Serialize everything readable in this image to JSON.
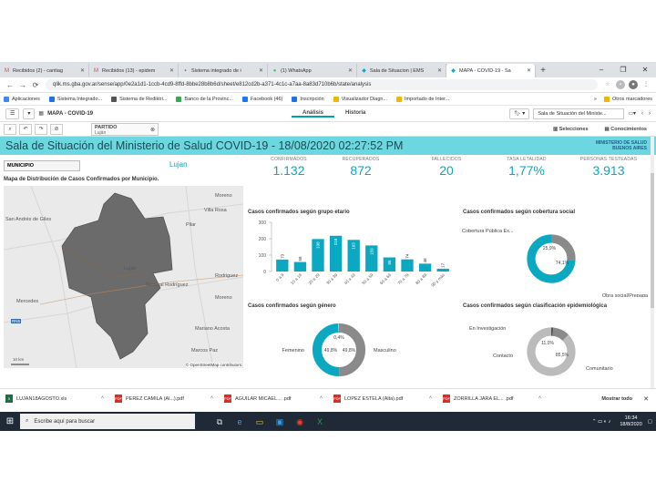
{
  "browser": {
    "tabs": [
      {
        "title": "Recibidos (2) - cantiag",
        "favicon_color": "#ea4335",
        "favicon": "M"
      },
      {
        "title": "Recibidos (13) - epidem",
        "favicon_color": "#ea4335",
        "favicon": "M"
      },
      {
        "title": "Sistema integrado de i",
        "favicon_color": "#1a73e8",
        "favicon": "▪"
      },
      {
        "title": "(1) WhatsApp",
        "favicon_color": "#25d366",
        "favicon": "●"
      },
      {
        "title": "Sala de Situacion | EMS",
        "favicon_color": "#0aa9c1",
        "favicon": "◆"
      },
      {
        "title": "MAPA - COVID-19 - Sa",
        "favicon_color": "#0aa9c1",
        "favicon": "◆"
      }
    ],
    "new_tab": "+",
    "window_controls": [
      "–",
      "❐",
      "✕"
    ],
    "url": "qlik.ms.gba.gov.ar/sense/app/0e2a1d1-1ccb-4cd9-8ffd-8bbe28b8b6d/sheet/e812cd2b-a371-4c1c-a7aa-8a83d710b6b/state/analysis",
    "bookmarks": [
      {
        "label": "Aplicaciones",
        "color": "#4285f4"
      },
      {
        "label": "Sistema Integrado...",
        "color": "#1a73e8"
      },
      {
        "label": "Sistema de Rediktri...",
        "color": "#555555"
      },
      {
        "label": "Banco de la Provinc...",
        "color": "#34a853"
      },
      {
        "label": "Facebook (46)",
        "color": "#1877f2"
      },
      {
        "label": "Inscripción",
        "color": "#1a73e8"
      },
      {
        "label": "Visualizador Diagn...",
        "color": "#f4b400"
      },
      {
        "label": "Importado de Inter...",
        "color": "#f4b400"
      }
    ],
    "bookmarks_overflow": "»",
    "bookmarks_other": "Otros marcadores"
  },
  "qlik": {
    "app_name": "MAPA - COVID-19",
    "tab_analysis": "Análisis",
    "tab_history": "Historia",
    "sheet_selector": "Sala de Situación del Ministe...",
    "selections_label": "Selecciones",
    "insights_label": "Conocimientos",
    "filter_chip": {
      "label": "PARTIDO",
      "value": "Luján"
    }
  },
  "dashboard": {
    "title": "Sala de Situación del Ministerio de Salud COVID-19 - 18/08/2020 02:27:52 PM",
    "logo_line1": "MINISTERIO DE SALUD",
    "logo_line2": "BUENOS AIRES",
    "municipio_label": "MUNICIPIO",
    "municipio_value": "Lujan",
    "kpis": [
      {
        "label": "CONFIRMADOS",
        "value": "1.132"
      },
      {
        "label": "RECUPERADOS",
        "value": "872"
      },
      {
        "label": "FALLECIDOS",
        "value": "20"
      },
      {
        "label": "TASA LETALIDAD",
        "value": "1,77%"
      },
      {
        "label": "PERSONAS TESTEADAS",
        "value": "3.913"
      }
    ],
    "map": {
      "title": "Mapa de Distribución de Casos Confirmados por Municipio.",
      "labels": [
        "San Andrés de Giles",
        "Moreno",
        "Villa Rosa",
        "Pilar",
        "Luján",
        "General Rodríguez",
        "Mercedes",
        "Moreno",
        "Mariano Acosta",
        "Marcos Paz",
        "Rodriguez"
      ],
      "scale": "10 km",
      "copyright": "© OpenStreetMap contributors",
      "road": "RN5"
    }
  },
  "chart_data": [
    {
      "type": "bar",
      "title": "Casos confirmados según grupo etario",
      "categories": [
        "0 a 9",
        "10 a 19",
        "20 a 29",
        "30 a 39",
        "40 a 49",
        "50 a 59",
        "60 a 69",
        "70 a 79",
        "80 a 89",
        "90 y más"
      ],
      "values": [
        73,
        58,
        198,
        218,
        193,
        159,
        86,
        74,
        48,
        17
      ],
      "value_labels": [
        "73",
        "58",
        "198",
        "218",
        "193",
        "159",
        "86",
        "74",
        "48",
        "17"
      ],
      "yticks": [
        "300",
        "200",
        "100",
        "0"
      ],
      "ylim": [
        0,
        300
      ],
      "color": "#0aa9c1"
    },
    {
      "type": "pie",
      "title": "Casos confirmados según cobertura social",
      "categories": [
        "Cobertura Pública Ex...",
        "Obra social/Prepaga"
      ],
      "values": [
        25.9,
        74.1
      ],
      "value_labels": [
        "25,9%",
        "74,1%"
      ],
      "colors": [
        "#8a8a8a",
        "#0aa9c1"
      ]
    },
    {
      "type": "pie",
      "title": "Casos confirmados según género",
      "categories": [
        "Femenino",
        "Masculino",
        ""
      ],
      "values": [
        49.8,
        49.8,
        0.4
      ],
      "value_labels": [
        "49,8%",
        "49,8%",
        "0,4%"
      ],
      "colors": [
        "#8a8a8a",
        "#0aa9c1",
        "#cccccc"
      ]
    },
    {
      "type": "pie",
      "title": "Casos confirmados según clasificación epidemiológica",
      "categories": [
        "En Investigación",
        "Contacto",
        "Comunitario"
      ],
      "values": [
        1.4,
        11.0,
        85.5
      ],
      "value_labels": [
        "",
        "11,0%",
        "85,5%"
      ],
      "colors": [
        "#555555",
        "#8a8a8a",
        "#bbbbbb"
      ]
    }
  ],
  "downloads": [
    {
      "name": "LUJAN18AGOSTO.xls",
      "icon_color": "#1d6f42",
      "icon": "X"
    },
    {
      "name": "PEREZ CAMILA (Al...).pdf",
      "icon_color": "#d93025",
      "icon": "PDF"
    },
    {
      "name": "AGUILAR MICAEL... .pdf",
      "icon_color": "#d93025",
      "icon": "PDF"
    },
    {
      "name": "LOPEZ ESTELA (Alta).pdf",
      "icon_color": "#d93025",
      "icon": "PDF"
    },
    {
      "name": "ZORRILLA JARA EL... .pdf",
      "icon_color": "#d93025",
      "icon": "PDF"
    }
  ],
  "show_all": "Mostrar todo",
  "taskbar": {
    "search_placeholder": "Escribe aquí para buscar",
    "time": "16:34",
    "date": "18/8/2020"
  }
}
